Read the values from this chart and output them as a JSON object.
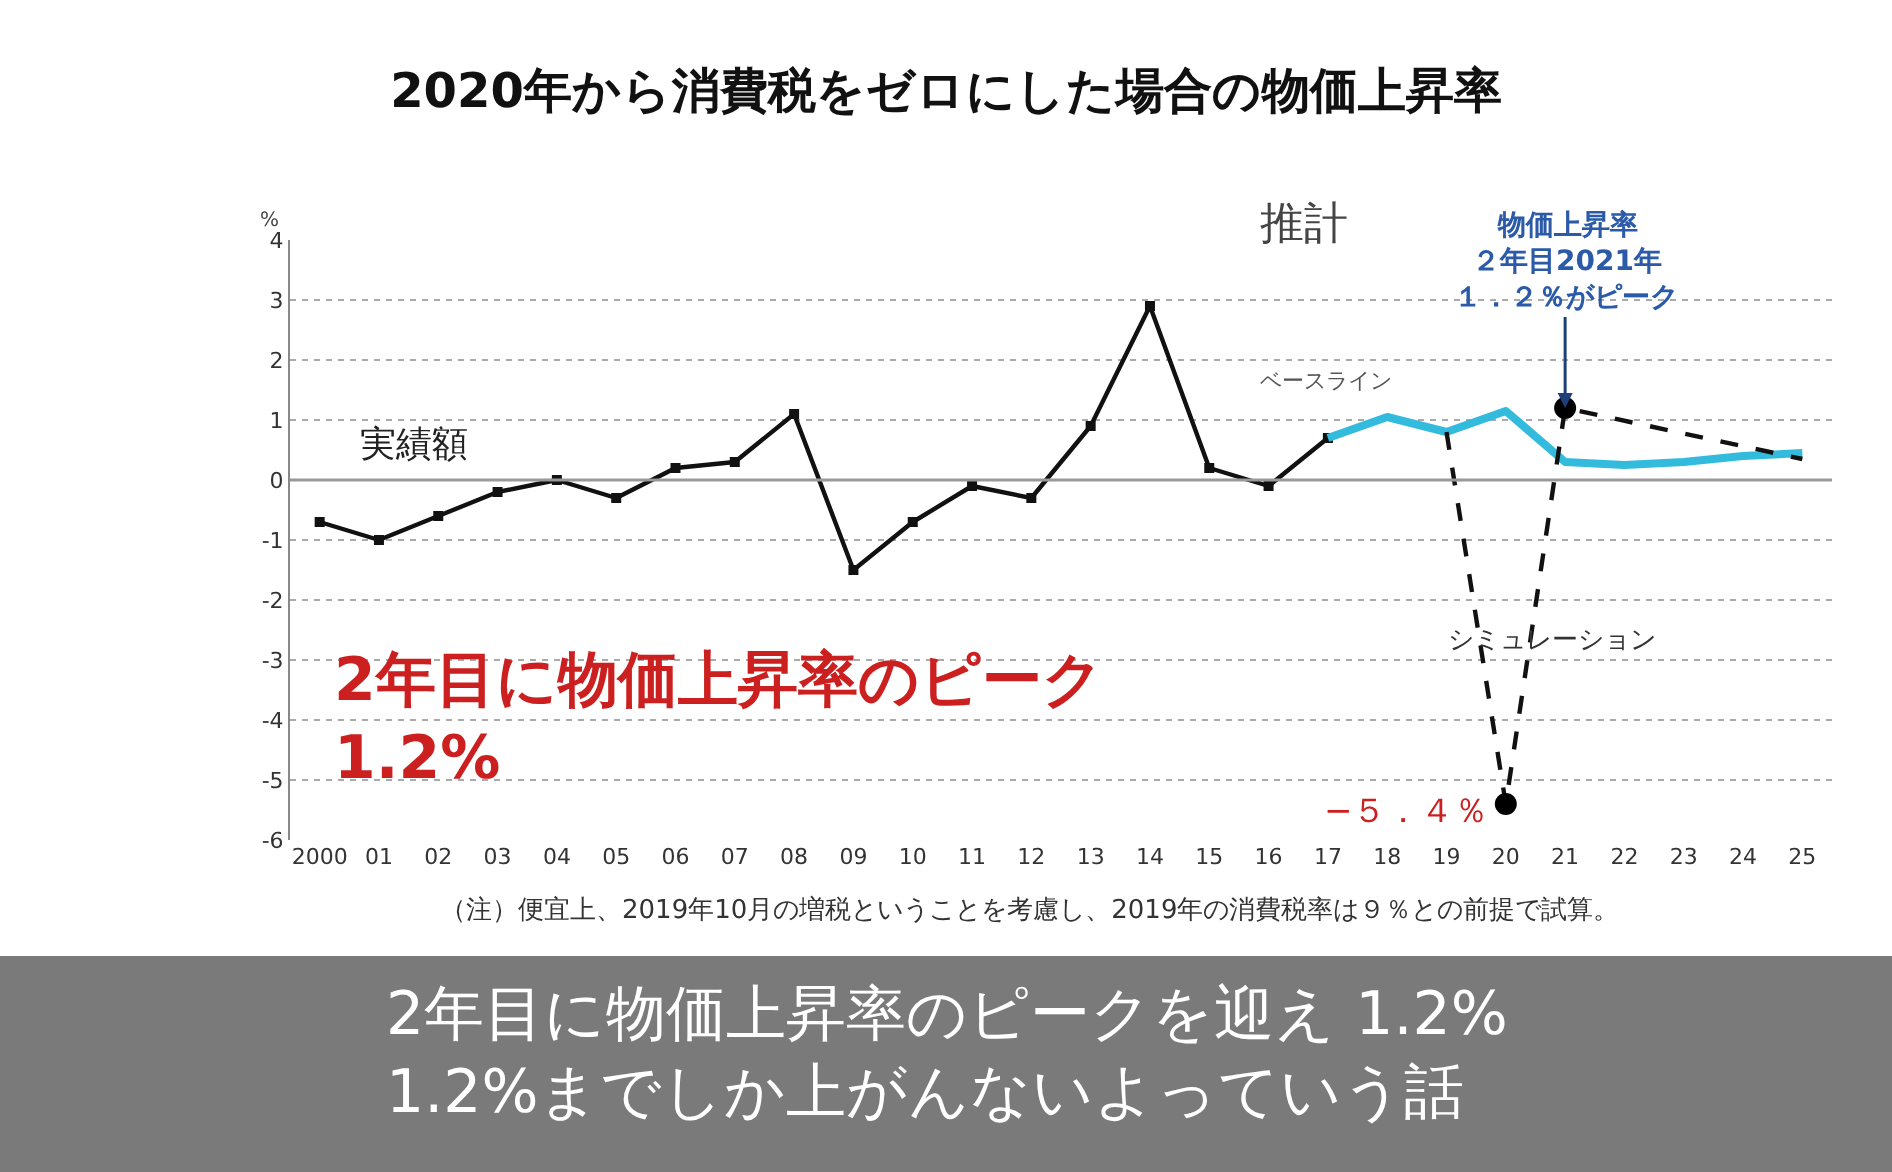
{
  "chart_data": {
    "type": "line",
    "title": "2020年から消費税をゼロにした場合の物価上昇率",
    "ylabel": "%",
    "categories": [
      "2000",
      "01",
      "02",
      "03",
      "04",
      "05",
      "06",
      "07",
      "08",
      "09",
      "10",
      "11",
      "12",
      "13",
      "14",
      "15",
      "16",
      "17",
      "18",
      "19",
      "20",
      "21",
      "22",
      "23",
      "24",
      "25"
    ],
    "series": [
      {
        "color": "#111111",
        "marker": "square",
        "line_style": "solid",
        "values": [
          -0.7,
          -1.0,
          -0.6,
          -0.2,
          0.0,
          -0.3,
          0.2,
          0.3,
          1.1,
          -1.5,
          -0.7,
          -0.1,
          -0.3,
          0.9,
          2.9,
          0.2,
          -0.1,
          0.7,
          null,
          null,
          null,
          null,
          null,
          null,
          null,
          null
        ]
      },
      {
        "color": "#33bbdd",
        "marker": "none",
        "line_style": "solid",
        "values": [
          null,
          null,
          null,
          null,
          null,
          null,
          null,
          null,
          null,
          null,
          null,
          null,
          null,
          null,
          null,
          null,
          null,
          0.7,
          1.05,
          0.8,
          1.15,
          0.3,
          0.25,
          0.3,
          0.4,
          0.45
        ]
      },
      {
        "color": "#111111",
        "marker": "none",
        "line_style": "dashed",
        "values": [
          null,
          null,
          null,
          null,
          null,
          null,
          null,
          null,
          null,
          null,
          null,
          null,
          null,
          null,
          null,
          null,
          null,
          null,
          null,
          0.8,
          -5.4,
          1.2,
          null,
          null,
          null,
          0.35
        ]
      },
      {
        "type": "scatter",
        "color": "#000000",
        "marker": "circle",
        "x": [
          "20",
          "21"
        ],
        "values": [
          -5.4,
          1.2
        ]
      }
    ],
    "ylim": [
      -6,
      4
    ],
    "yticks": [
      -6,
      -5,
      -4,
      -3,
      -2,
      -1,
      0,
      1,
      2,
      3,
      4
    ],
    "grid": "y",
    "annotations": [
      "実績額",
      "推計",
      "ベースライン",
      "シミュレーション",
      "物価上昇率",
      "２年目2021年",
      {
        "text": "１．２％がピーク",
        "x": "21",
        "y": 1.2
      },
      {
        "text": "−５．４％",
        "x": "20",
        "y": -5.4
      },
      "2年目に物価上昇率のピーク\n1.2%",
      "（注）便宜上、2019年10月の増税ということを考慮し、2019年の消費税率は９％との前提で試算。",
      "2年目に物価上昇率のピークを迎え 1.2%\n1.2%までしか上がんないよっていう話"
    ]
  }
}
